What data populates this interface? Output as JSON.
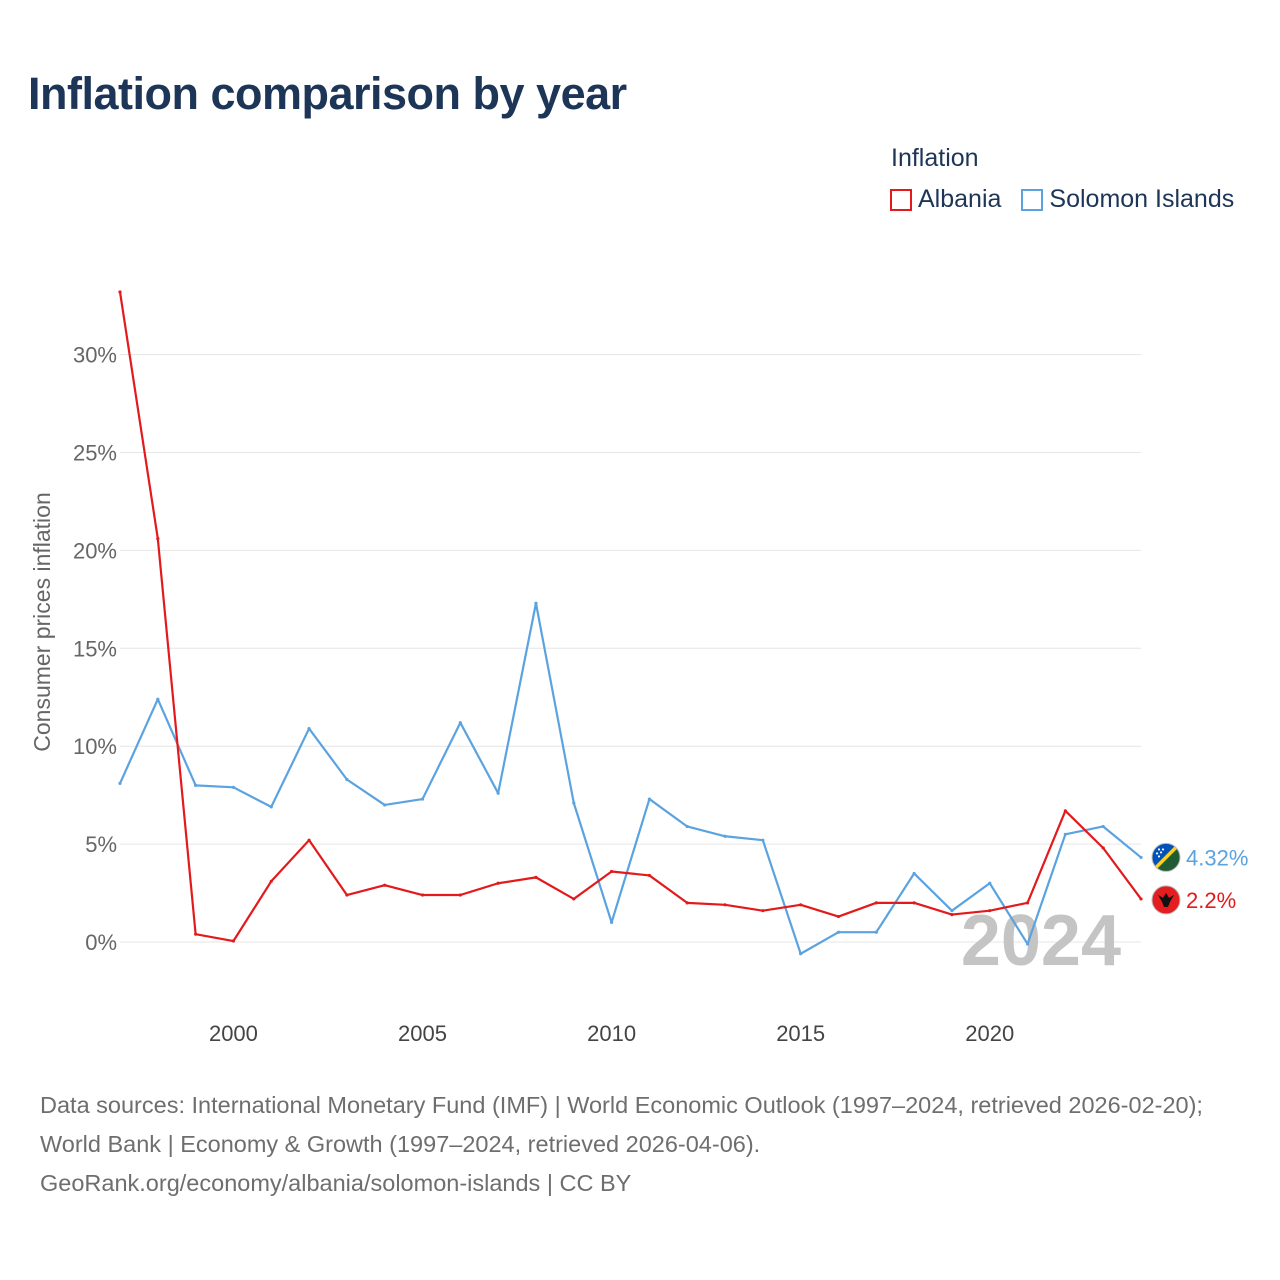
{
  "title": "Inflation comparison by year",
  "legend": {
    "title": "Inflation",
    "items": [
      {
        "label": "Albania",
        "color": "#e31a1c"
      },
      {
        "label": "Solomon Islands",
        "color": "#5ba3e0"
      }
    ]
  },
  "chart_data": {
    "type": "line",
    "title": "Inflation comparison by year",
    "xlabel": "",
    "ylabel": "Consumer prices inflation",
    "x": [
      1997,
      1998,
      1999,
      2000,
      2001,
      2002,
      2003,
      2004,
      2005,
      2006,
      2007,
      2008,
      2009,
      2010,
      2011,
      2012,
      2013,
      2014,
      2015,
      2016,
      2017,
      2018,
      2019,
      2020,
      2021,
      2022,
      2023,
      2024
    ],
    "xlim": [
      1997,
      2024
    ],
    "ylim": [
      -5,
      33.5
    ],
    "x_ticks": [
      {
        "value": 2000,
        "label": "2000"
      },
      {
        "value": 2005,
        "label": "2005"
      },
      {
        "value": 2010,
        "label": "2010"
      },
      {
        "value": 2015,
        "label": "2015"
      },
      {
        "value": 2020,
        "label": "2020"
      }
    ],
    "y_ticks": [
      {
        "value": 0,
        "label": "0%"
      },
      {
        "value": 5,
        "label": "5%"
      },
      {
        "value": 10,
        "label": "10%"
      },
      {
        "value": 15,
        "label": "15%"
      },
      {
        "value": 20,
        "label": "20%"
      },
      {
        "value": 25,
        "label": "25%"
      },
      {
        "value": 30,
        "label": "30%"
      }
    ],
    "grid": true,
    "year_label": "2024",
    "series": [
      {
        "name": "Albania",
        "color": "#e31a1c",
        "end_label": "2.2%",
        "values": [
          33.2,
          20.6,
          0.4,
          0.05,
          3.1,
          5.2,
          2.4,
          2.9,
          2.4,
          2.4,
          3.0,
          3.3,
          2.2,
          3.6,
          3.4,
          2.0,
          1.9,
          1.6,
          1.9,
          1.3,
          2.0,
          2.0,
          1.4,
          1.6,
          2.0,
          6.7,
          4.8,
          2.2
        ]
      },
      {
        "name": "Solomon Islands",
        "color": "#5ba3e0",
        "end_label": "4.32%",
        "values": [
          8.1,
          12.4,
          8.0,
          7.9,
          6.9,
          10.9,
          8.3,
          7.0,
          7.3,
          11.2,
          7.6,
          17.3,
          7.1,
          1.0,
          7.3,
          5.9,
          5.4,
          5.2,
          -0.6,
          0.5,
          0.5,
          3.5,
          1.6,
          3.0,
          -0.1,
          5.5,
          5.9,
          4.32
        ]
      }
    ]
  },
  "footer": {
    "line1": "Data sources: International Monetary Fund (IMF) | World Economic Outlook (1997–2024, retrieved 2026-02-20); World Bank | Economy & Growth (1997–2024, retrieved 2026-04-06).",
    "line2": "GeoRank.org/economy/albania/solomon-islands | CC BY"
  }
}
